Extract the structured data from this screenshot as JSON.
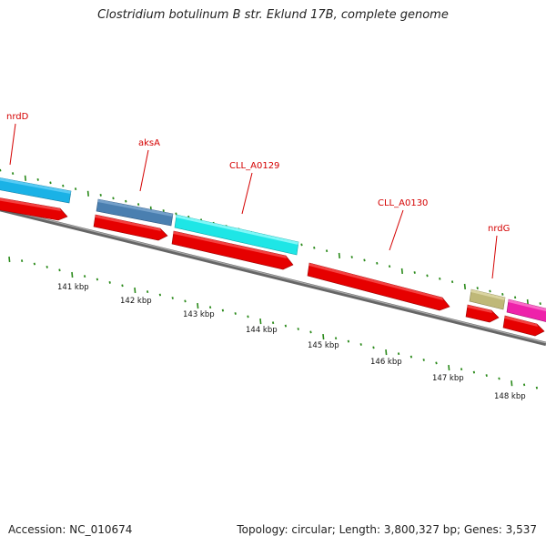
{
  "title": "Clostridium botulinum B str. Eklund 17B, complete genome",
  "footer": {
    "accession": "Accession: NC_010674",
    "summary": "Topology: circular; Length: 3,800,327 bp; Genes: 3,537"
  },
  "colors": {
    "backbone": "#7a7a7a",
    "tick": "#2a8a1a",
    "label": "#d40000",
    "cds_red": "#e60000"
  },
  "genes": [
    {
      "name": "nrdD",
      "color": "#1ab2e6"
    },
    {
      "name": "aksA",
      "color": "#4a7fb0"
    },
    {
      "name": "CLL_A0129",
      "color": "#1ee6e6"
    },
    {
      "name": "CLL_A0130",
      "color": "#e60000"
    },
    {
      "name": "nrdG",
      "color": "#bfb878"
    },
    {
      "name": "",
      "color": "#ee22aa"
    }
  ],
  "scale_labels": [
    "141 kbp",
    "142 kbp",
    "143 kbp",
    "144 kbp",
    "145 kbp",
    "146 kbp",
    "147 kbp",
    "148 kbp"
  ]
}
